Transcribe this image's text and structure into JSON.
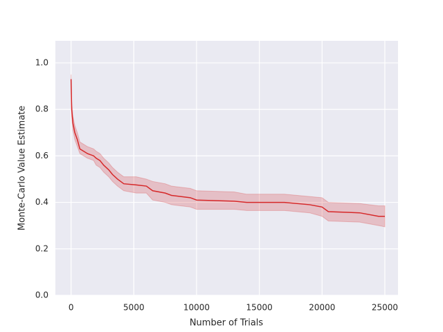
{
  "chart_data": {
    "type": "line",
    "xlabel": "Number of Trials",
    "ylabel": "Monte-Carlo Value Estimate",
    "xlim": [
      -1250,
      26050
    ],
    "ylim": [
      0,
      1.095
    ],
    "xticks": [
      0,
      5000,
      10000,
      15000,
      20000,
      25000
    ],
    "yticks": [
      {
        "value": 0,
        "label": "0.0"
      },
      {
        "value": 0.2,
        "label": "0.2"
      },
      {
        "value": 0.4,
        "label": "0.4"
      },
      {
        "value": 0.6,
        "label": "0.6"
      },
      {
        "value": 0.8,
        "label": "0.8"
      },
      {
        "value": 1.0,
        "label": "1.0"
      }
    ],
    "grid": true,
    "background": "#eaeaf2",
    "series": [
      {
        "color": "#d62728",
        "x": [
          0,
          50,
          150,
          300,
          500,
          700,
          1000,
          1300,
          1800,
          2000,
          2300,
          2600,
          3000,
          3300,
          3700,
          4200,
          5200,
          6000,
          6500,
          7500,
          8000,
          9500,
          10000,
          13000,
          14000,
          17000,
          19000,
          20000,
          20500,
          23000,
          24500,
          25000
        ],
        "values": [
          0.93,
          0.8,
          0.74,
          0.7,
          0.67,
          0.63,
          0.62,
          0.61,
          0.6,
          0.59,
          0.58,
          0.56,
          0.54,
          0.52,
          0.5,
          0.48,
          0.475,
          0.47,
          0.45,
          0.44,
          0.43,
          0.42,
          0.41,
          0.405,
          0.4,
          0.4,
          0.39,
          0.38,
          0.36,
          0.355,
          0.34,
          0.34
        ],
        "lower": [
          0.91,
          0.77,
          0.71,
          0.67,
          0.64,
          0.61,
          0.6,
          0.59,
          0.58,
          0.56,
          0.55,
          0.53,
          0.51,
          0.49,
          0.47,
          0.45,
          0.44,
          0.44,
          0.41,
          0.4,
          0.39,
          0.38,
          0.37,
          0.37,
          0.365,
          0.365,
          0.355,
          0.34,
          0.32,
          0.315,
          0.3,
          0.295
        ],
        "upper": [
          0.95,
          0.83,
          0.77,
          0.73,
          0.7,
          0.66,
          0.65,
          0.64,
          0.63,
          0.62,
          0.61,
          0.59,
          0.57,
          0.55,
          0.53,
          0.51,
          0.51,
          0.5,
          0.49,
          0.48,
          0.47,
          0.46,
          0.45,
          0.445,
          0.435,
          0.435,
          0.425,
          0.42,
          0.4,
          0.395,
          0.385,
          0.385
        ]
      }
    ]
  }
}
